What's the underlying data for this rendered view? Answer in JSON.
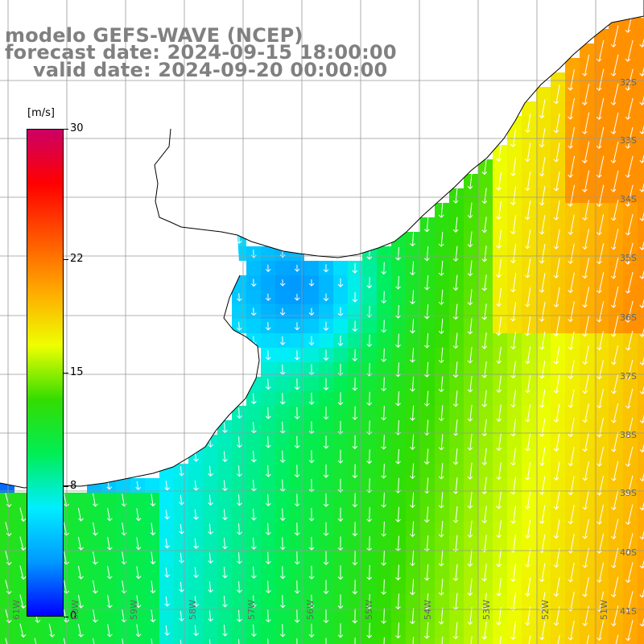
{
  "header": {
    "line1": "modelo GEFS-WAVE (NCEP)",
    "line2": "forecast date: 2024-09-15 18:00:00",
    "line3": "valid date: 2024-09-20 00:00:00"
  },
  "colorbar": {
    "unit": "[m/s]",
    "ticks": [
      {
        "label": "30",
        "value": 30
      },
      {
        "label": "22",
        "value": 22
      },
      {
        "label": "15",
        "value": 15
      },
      {
        "label": "8",
        "value": 8
      },
      {
        "label": "0",
        "value": 0
      }
    ],
    "range": [
      0,
      30
    ],
    "colors": [
      "#0000ff",
      "#0099ff",
      "#00eeff",
      "#00ee55",
      "#33dd00",
      "#eeff00",
      "#ffaa00",
      "#ff5500",
      "#ff0000",
      "#cc0066"
    ]
  },
  "grid": {
    "lat_labels": [
      "32S",
      "33S",
      "34S",
      "35S",
      "36S",
      "37S",
      "38S",
      "39S",
      "40S",
      "41S"
    ],
    "lon_labels": [
      "61W",
      "60W",
      "59W",
      "58W",
      "57W",
      "56W",
      "55W",
      "54W",
      "53W",
      "52W",
      "51W"
    ]
  },
  "map": {
    "land_color": "#ffffff",
    "grid_color": "#999999",
    "coast_color": "#000000",
    "arrow_color": "#ffffff",
    "wind_direction": "southward"
  }
}
